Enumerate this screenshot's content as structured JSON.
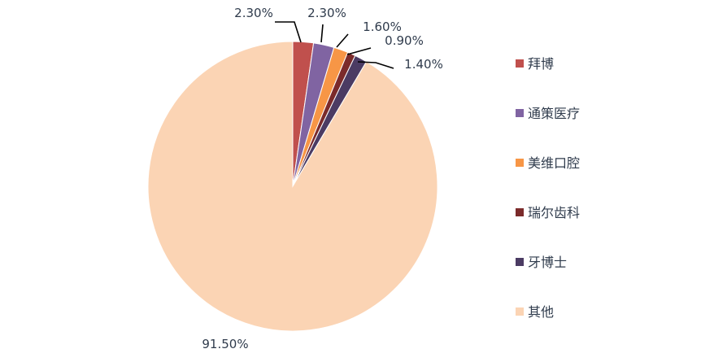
{
  "chart_data": {
    "type": "pie",
    "title": "",
    "categories": [
      "拜博",
      "通策医疗",
      "美维口腔",
      "瑞尔齿科",
      "牙博士",
      "其他"
    ],
    "values": [
      2.3,
      2.3,
      1.6,
      0.9,
      1.4,
      91.5
    ],
    "labels": [
      "2.30%",
      "2.30%",
      "1.60%",
      "0.90%",
      "1.40%",
      "91.50%"
    ],
    "colors": [
      "#c0504d",
      "#8064a2",
      "#f79646",
      "#7b2b2b",
      "#4b3b63",
      "#fbd4b4"
    ],
    "legend": "right",
    "start_angle": "12 o'clock",
    "direction": "clockwise"
  }
}
